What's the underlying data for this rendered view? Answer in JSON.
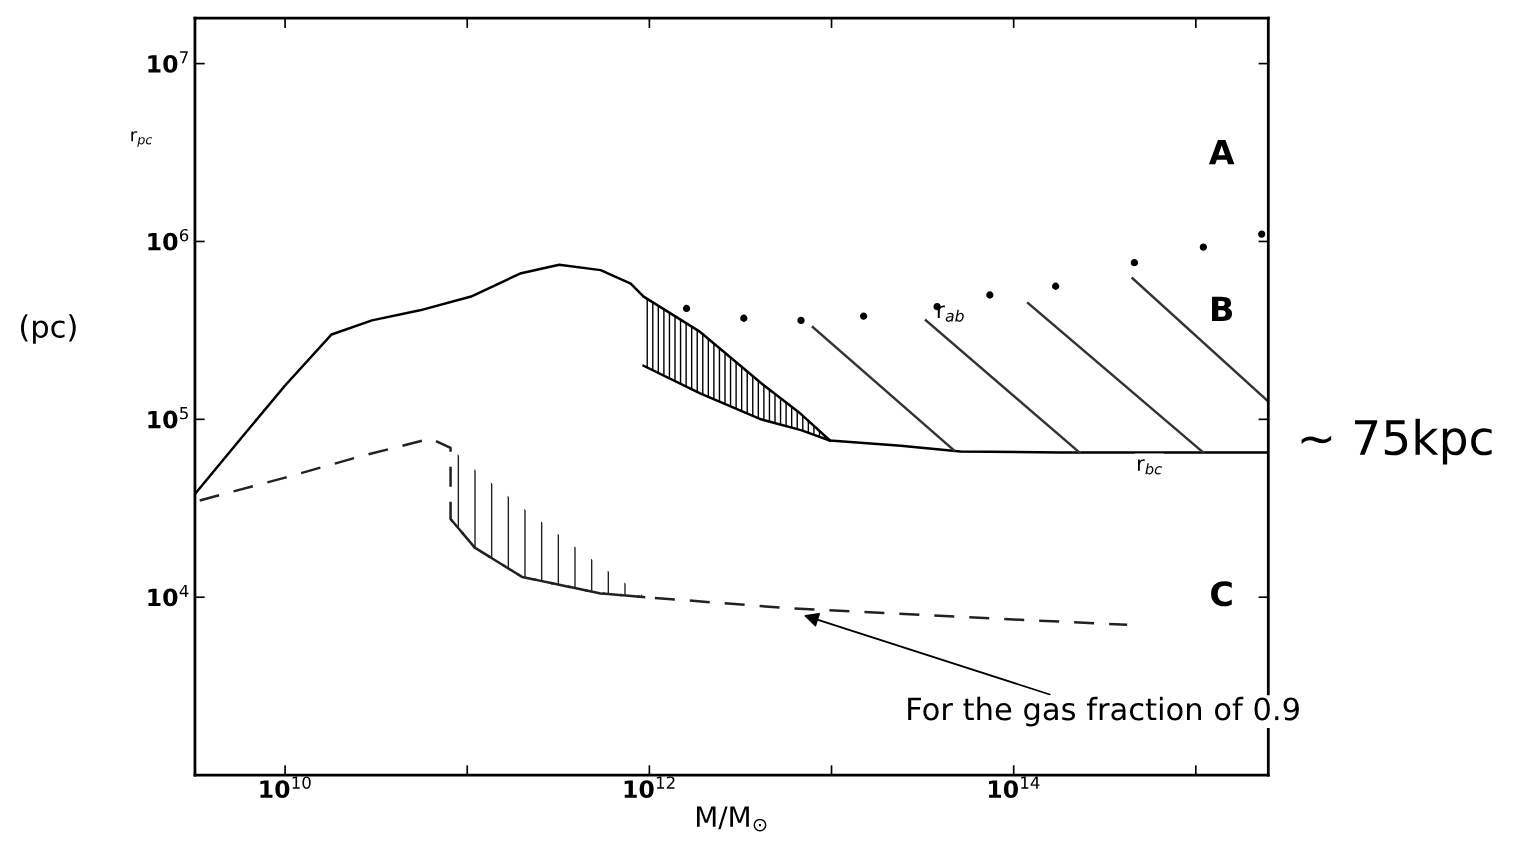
{
  "chart_data": {
    "type": "line",
    "xlabel": "M/M$_{⊙}$",
    "ylabel": "r$_{pc}$",
    "log": "xy",
    "grid": false,
    "legend": false,
    "xlim": [
      3200000000.0,
      2500000000000000.0
    ],
    "ylim": [
      1000,
      18000000
    ],
    "xticks": [
      {
        "value": 10000000000.0,
        "label": "10$^{10}$"
      },
      {
        "value": 100000000000.0,
        "label": null
      },
      {
        "value": 1000000000000.0,
        "label": "10$^{12}$"
      },
      {
        "value": 10000000000000.0,
        "label": null
      },
      {
        "value": 100000000000000.0,
        "label": "10$^{14}$"
      },
      {
        "value": 1000000000000000.0,
        "label": null
      }
    ],
    "yticks": [
      {
        "value": 1000,
        "label": null
      },
      {
        "value": 10000,
        "label": "10$^{4}$"
      },
      {
        "value": 100000,
        "label": "10$^{5}$"
      },
      {
        "value": 1000000,
        "label": "10$^{6}$"
      },
      {
        "value": 10000000,
        "label": "10$^{7}$"
      }
    ],
    "series": [
      {
        "color": "#000000",
        "line_style": "solid",
        "x": [
          3200000000.0,
          5600000000.0,
          10000000000.0,
          18000000000.0,
          30000000000.0,
          55000000000.0,
          105000000000.0,
          195000000000.0,
          320000000000.0,
          540000000000.0,
          790000000000.0,
          930000000000.0,
          1900000000000.0,
          4100000000000.0,
          6800000000000.0,
          9800000000000.0,
          24000000000000.0,
          51000000000000.0,
          180000000000000.0,
          2500000000000000.0
        ],
        "values": [
          38000,
          76000,
          155000,
          300000,
          360000,
          410000,
          490000,
          660000,
          740000,
          690000,
          580000,
          490000,
          310000,
          160000,
          107000,
          76000,
          71000,
          66000,
          65000,
          65000
        ],
        "lower": [
          null,
          null,
          null,
          null,
          null,
          null,
          null,
          null,
          null,
          null,
          null,
          200000,
          140000,
          100000,
          87000,
          76000,
          null,
          null,
          null,
          null
        ],
        "upper": [
          null,
          null,
          null,
          null,
          null,
          null,
          null,
          null,
          null,
          null,
          null,
          490000,
          310000,
          160000,
          107000,
          76000,
          null,
          null,
          null,
          null
        ]
      },
      {
        "color": "#000000",
        "line_style": "solid",
        "x": [
          930000000000.0,
          1900000000000.0,
          4100000000000.0,
          6800000000000.0,
          9800000000000.0
        ],
        "values": [
          200000,
          140000,
          100000,
          87000,
          76000
        ]
      },
      {
        "color": "#222222",
        "line_style": "dashed",
        "x": [
          81000000000.0,
          110000000000.0,
          200000000000.0,
          540000000000.0,
          950000000000.0
        ],
        "values": [
          27500,
          19000,
          13000,
          10500,
          10000
        ]
      },
      {
        "type": "scatter",
        "color": "#000000",
        "marker": "circle",
        "x": [
          1600000000000.0,
          3300000000000.0,
          6800000000000.0,
          15000000000000.0,
          38000000000000.0,
          74000000000000.0,
          170000000000000.0,
          460000000000000.0,
          1100000000000000.0,
          2300000000000000.0
        ],
        "values": [
          420000,
          370000,
          360000,
          380000,
          430000,
          500000,
          560000,
          760000,
          930000,
          1100000
        ]
      },
      {
        "type": "line",
        "color": "#333333",
        "line_style": "solid",
        "x": [
          7900000000000.0,
          47000000000000.0
        ],
        "values": [
          330000,
          67000
        ]
      },
      {
        "type": "line",
        "color": "#333333",
        "line_style": "solid",
        "x": [
          33000000000000.0,
          230000000000000.0
        ],
        "values": [
          360000,
          65000
        ]
      },
      {
        "type": "line",
        "color": "#333333",
        "line_style": "solid",
        "x": [
          120000000000000.0,
          1100000000000000.0
        ],
        "values": [
          450000,
          65000
        ]
      },
      {
        "type": "line",
        "color": "#333333",
        "line_style": "solid",
        "x": [
          450000000000000.0,
          2500000000000000.0
        ],
        "values": [
          620000,
          126000
        ]
      },
      {
        "type": "line",
        "color": "#222222",
        "line_style": "dashed",
        "x": [
          3400000000.0,
          10000000000.0,
          26000000000.0,
          63000000000.0,
          81000000000.0,
          81000000000.0,
          110000000000.0,
          200000000000.0,
          540000000000.0,
          950000000000.0,
          5600000000000.0,
          74000000000000.0,
          420000000000000.0
        ],
        "values": [
          35000,
          47000,
          62000,
          78000,
          69000,
          27500,
          19000,
          13000,
          10500,
          10000,
          8700,
          7600,
          7000
        ],
        "lower": [
          null,
          null,
          null,
          null,
          null,
          27500,
          19000,
          13000,
          10500,
          10000,
          null,
          null,
          null
        ],
        "upper": [
          null,
          null,
          null,
          null,
          null,
          69000,
          52000,
          32000,
          15000,
          10000,
          null,
          null,
          null
        ]
      }
    ],
    "annotations": [
      "A",
      "B",
      "C",
      "r$_{ab}$",
      {
        "text": "r$_{bc}$",
        "x": 470000000000000.0,
        "y": 63000
      },
      {
        "text": "For the gas fraction of 0.9",
        "x": 6800000000000.0,
        "y": 8000
      },
      "(pc)",
      "~ 75kpc"
    ]
  }
}
